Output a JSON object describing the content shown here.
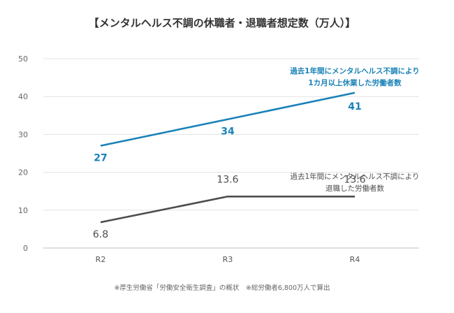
{
  "chart_data": {
    "type": "line",
    "title": "【メンタルヘルス不調の休職者・退職者想定数（万人）】",
    "categories": [
      "R2",
      "R3",
      "R4"
    ],
    "ylim": [
      0,
      50
    ],
    "yticks": [
      "0",
      "10",
      "20",
      "30",
      "40",
      "50"
    ],
    "grid": true,
    "series": [
      {
        "name": "過去1年間にメンタルヘルス不調により 1カ月以上休業した労働者数",
        "name_lines": [
          "過去1年間にメンタルヘルス不調により",
          "1カ月以上休業した労働者数"
        ],
        "values": [
          27,
          34,
          41
        ],
        "labels": [
          "27",
          "34",
          "41"
        ],
        "color": "#1a82b8"
      },
      {
        "name": "過去1年間にメンタルヘルス不調により 退職した労働者数",
        "name_lines": [
          "過去1年間にメンタルヘルス不調により",
          "退職した労働者数"
        ],
        "values": [
          6.8,
          13.6,
          13.6
        ],
        "labels": [
          "6.8",
          "13.6",
          "13.6"
        ],
        "color": "#4d4d4d"
      }
    ],
    "footnote": "※厚生労働省「労働安全衛生調査」の概状　※総労働者6,800万人で算出"
  }
}
